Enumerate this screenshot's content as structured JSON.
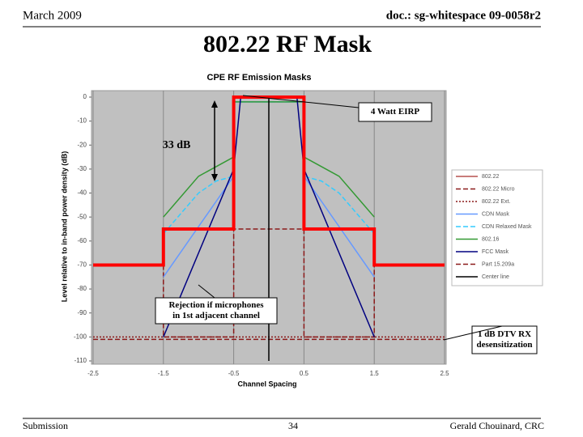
{
  "slide": {
    "header_left": "March 2009",
    "header_right": "doc.: sg-whitespace 09-0058r2",
    "title": "802.22 RF Mask",
    "footer_left": "Submission",
    "footer_center": "34",
    "footer_right": "Gerald Chouinard, CRC"
  },
  "chart_data": {
    "type": "line",
    "title": "CPE RF Emission Masks",
    "x_label": "Channel Spacing",
    "y_label": "Level relative to in-band power density (dB)",
    "xlim": [
      -2.5,
      2.5
    ],
    "xticks": [
      -2.5,
      -1.5,
      -0.5,
      0.5,
      1.5,
      2.5
    ],
    "ylim": [
      -110,
      0
    ],
    "yticks": [
      0,
      -10,
      -20,
      -30,
      -40,
      -50,
      -60,
      -70,
      -80,
      -90,
      -100,
      -110
    ],
    "grid": true,
    "series": [
      {
        "name": "802.22",
        "color": "#b5514e",
        "dash": "solid",
        "x": [
          -2.5,
          -1.5,
          -1.5,
          -0.5,
          -0.5,
          0.5,
          0.5,
          1.5,
          1.5,
          2.5
        ],
        "values": [
          -70,
          -70,
          -55,
          -55,
          0,
          0,
          -55,
          -55,
          -70,
          -70
        ]
      },
      {
        "name": "802.22 Micro",
        "color": "#8b1a1a",
        "dash": "dashed",
        "x": [
          -1.5,
          -1.5,
          -0.5,
          -0.5,
          0.5,
          0.5,
          1.5,
          1.5
        ],
        "values": [
          -70,
          -100,
          -100,
          -55,
          -55,
          -100,
          -100,
          -70
        ]
      },
      {
        "name": "802.22 Ext.",
        "color": "#8b1a1a",
        "dash": "dotted",
        "x": [
          -2.5,
          -1.5,
          1.5,
          2.5
        ],
        "values": [
          -100,
          -100,
          -100,
          -100
        ]
      },
      {
        "name": "CDN Mask",
        "color": "#6699ff",
        "dash": "solid",
        "x": [
          -1.5,
          -0.5,
          -0.5,
          0.5,
          0.5,
          1.5
        ],
        "values": [
          -75,
          -33,
          -2,
          -2,
          -33,
          -75
        ]
      },
      {
        "name": "CDN Relaxed Mask",
        "color": "#33ccff",
        "dash": "dashed",
        "x": [
          -1.5,
          -1,
          -0.75,
          -0.5,
          -0.5,
          0.5,
          0.5,
          0.75,
          1,
          1.5
        ],
        "values": [
          -57,
          -40,
          -35,
          -33,
          -2,
          -2,
          -33,
          -35,
          -40,
          -57
        ]
      },
      {
        "name": "802.16",
        "color": "#339933",
        "dash": "solid",
        "x": [
          -1.5,
          -1,
          -0.75,
          -0.5,
          -0.5,
          0.5,
          0.5,
          0.75,
          1,
          1.5
        ],
        "values": [
          -50,
          -33,
          -29,
          -25,
          -2,
          -2,
          -25,
          -29,
          -33,
          -50
        ]
      },
      {
        "name": "FCC Mask",
        "color": "#000080",
        "dash": "solid",
        "x": [
          -1.5,
          -0.5,
          -0.4,
          0.4,
          0.5,
          1.5
        ],
        "values": [
          -100,
          -30,
          0,
          0,
          -30,
          -100
        ]
      },
      {
        "name": "Part 15.209a",
        "color": "#8b1a1a",
        "dash": "dashed",
        "x": [
          -2.5,
          2.5
        ],
        "values": [
          -101,
          -101
        ]
      },
      {
        "name": "Center line",
        "color": "#000000",
        "dash": "solid",
        "x": [
          0,
          0
        ],
        "values": [
          -110,
          0
        ]
      }
    ],
    "overlay": {
      "color": "#ff0000",
      "x": [
        -2.5,
        -1.5,
        -1.5,
        -0.5,
        -0.5,
        0.5,
        0.5,
        1.5,
        1.5,
        2.5
      ],
      "values": [
        -70,
        -70,
        -55,
        -55,
        0,
        0,
        -55,
        -55,
        -70,
        -70
      ]
    },
    "annotations": [
      {
        "lines": [
          "4 Watt EIRP"
        ]
      },
      {
        "lines": [
          "33 dB"
        ]
      },
      {
        "lines": [
          "Rejection if microphones",
          "in 1st adjacent channel"
        ]
      },
      {
        "lines": [
          "1 dB DTV RX",
          "desensitization"
        ]
      }
    ]
  }
}
